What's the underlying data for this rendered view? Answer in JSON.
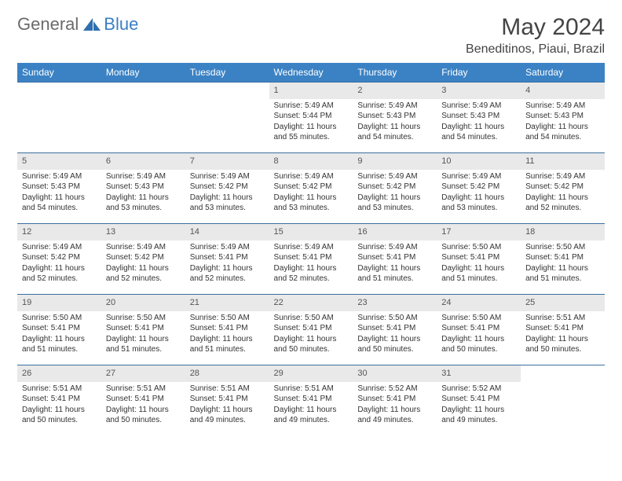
{
  "brand": {
    "part1": "General",
    "part2": "Blue"
  },
  "title": "May 2024",
  "location": "Beneditinos, Piaui, Brazil",
  "colors": {
    "header_bg": "#3b82c4",
    "header_text": "#ffffff",
    "daynum_bg": "#e9e9e9",
    "border": "#3b6fa0",
    "logo_gray": "#6b6b6b",
    "logo_blue": "#3b7fc4"
  },
  "weekdays": [
    "Sunday",
    "Monday",
    "Tuesday",
    "Wednesday",
    "Thursday",
    "Friday",
    "Saturday"
  ],
  "weeks": [
    [
      null,
      null,
      null,
      {
        "n": "1",
        "sr": "5:49 AM",
        "ss": "5:44 PM",
        "dl": "11 hours and 55 minutes."
      },
      {
        "n": "2",
        "sr": "5:49 AM",
        "ss": "5:43 PM",
        "dl": "11 hours and 54 minutes."
      },
      {
        "n": "3",
        "sr": "5:49 AM",
        "ss": "5:43 PM",
        "dl": "11 hours and 54 minutes."
      },
      {
        "n": "4",
        "sr": "5:49 AM",
        "ss": "5:43 PM",
        "dl": "11 hours and 54 minutes."
      }
    ],
    [
      {
        "n": "5",
        "sr": "5:49 AM",
        "ss": "5:43 PM",
        "dl": "11 hours and 54 minutes."
      },
      {
        "n": "6",
        "sr": "5:49 AM",
        "ss": "5:43 PM",
        "dl": "11 hours and 53 minutes."
      },
      {
        "n": "7",
        "sr": "5:49 AM",
        "ss": "5:42 PM",
        "dl": "11 hours and 53 minutes."
      },
      {
        "n": "8",
        "sr": "5:49 AM",
        "ss": "5:42 PM",
        "dl": "11 hours and 53 minutes."
      },
      {
        "n": "9",
        "sr": "5:49 AM",
        "ss": "5:42 PM",
        "dl": "11 hours and 53 minutes."
      },
      {
        "n": "10",
        "sr": "5:49 AM",
        "ss": "5:42 PM",
        "dl": "11 hours and 53 minutes."
      },
      {
        "n": "11",
        "sr": "5:49 AM",
        "ss": "5:42 PM",
        "dl": "11 hours and 52 minutes."
      }
    ],
    [
      {
        "n": "12",
        "sr": "5:49 AM",
        "ss": "5:42 PM",
        "dl": "11 hours and 52 minutes."
      },
      {
        "n": "13",
        "sr": "5:49 AM",
        "ss": "5:42 PM",
        "dl": "11 hours and 52 minutes."
      },
      {
        "n": "14",
        "sr": "5:49 AM",
        "ss": "5:41 PM",
        "dl": "11 hours and 52 minutes."
      },
      {
        "n": "15",
        "sr": "5:49 AM",
        "ss": "5:41 PM",
        "dl": "11 hours and 52 minutes."
      },
      {
        "n": "16",
        "sr": "5:49 AM",
        "ss": "5:41 PM",
        "dl": "11 hours and 51 minutes."
      },
      {
        "n": "17",
        "sr": "5:50 AM",
        "ss": "5:41 PM",
        "dl": "11 hours and 51 minutes."
      },
      {
        "n": "18",
        "sr": "5:50 AM",
        "ss": "5:41 PM",
        "dl": "11 hours and 51 minutes."
      }
    ],
    [
      {
        "n": "19",
        "sr": "5:50 AM",
        "ss": "5:41 PM",
        "dl": "11 hours and 51 minutes."
      },
      {
        "n": "20",
        "sr": "5:50 AM",
        "ss": "5:41 PM",
        "dl": "11 hours and 51 minutes."
      },
      {
        "n": "21",
        "sr": "5:50 AM",
        "ss": "5:41 PM",
        "dl": "11 hours and 51 minutes."
      },
      {
        "n": "22",
        "sr": "5:50 AM",
        "ss": "5:41 PM",
        "dl": "11 hours and 50 minutes."
      },
      {
        "n": "23",
        "sr": "5:50 AM",
        "ss": "5:41 PM",
        "dl": "11 hours and 50 minutes."
      },
      {
        "n": "24",
        "sr": "5:50 AM",
        "ss": "5:41 PM",
        "dl": "11 hours and 50 minutes."
      },
      {
        "n": "25",
        "sr": "5:51 AM",
        "ss": "5:41 PM",
        "dl": "11 hours and 50 minutes."
      }
    ],
    [
      {
        "n": "26",
        "sr": "5:51 AM",
        "ss": "5:41 PM",
        "dl": "11 hours and 50 minutes."
      },
      {
        "n": "27",
        "sr": "5:51 AM",
        "ss": "5:41 PM",
        "dl": "11 hours and 50 minutes."
      },
      {
        "n": "28",
        "sr": "5:51 AM",
        "ss": "5:41 PM",
        "dl": "11 hours and 49 minutes."
      },
      {
        "n": "29",
        "sr": "5:51 AM",
        "ss": "5:41 PM",
        "dl": "11 hours and 49 minutes."
      },
      {
        "n": "30",
        "sr": "5:52 AM",
        "ss": "5:41 PM",
        "dl": "11 hours and 49 minutes."
      },
      {
        "n": "31",
        "sr": "5:52 AM",
        "ss": "5:41 PM",
        "dl": "11 hours and 49 minutes."
      },
      null
    ]
  ],
  "labels": {
    "sunrise": "Sunrise:",
    "sunset": "Sunset:",
    "daylight": "Daylight:"
  }
}
